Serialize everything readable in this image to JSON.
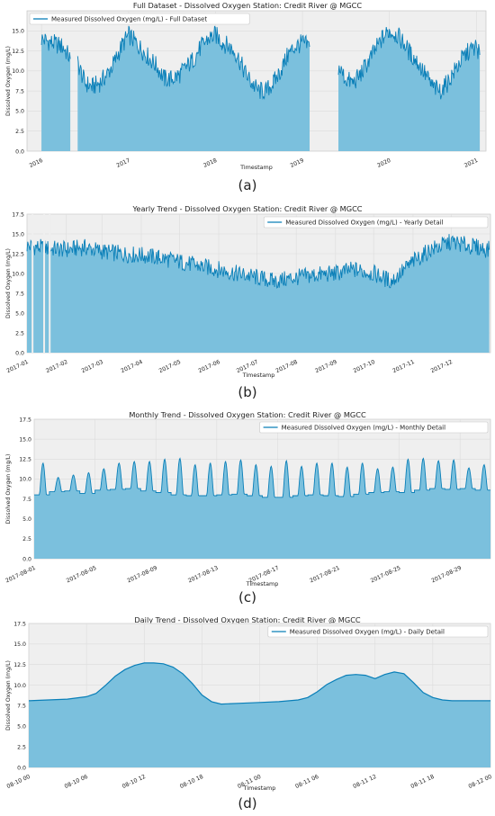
{
  "colors": {
    "line": "#0a7fb8",
    "fill": "#7bc0dd",
    "plot_bg": "#efefef",
    "grid": "#dcdcdc"
  },
  "chart_data": [
    {
      "type": "area",
      "caption": "(a)",
      "title": "Full Dataset - Dissolved Oxygen Station: Credit River @ MGCC",
      "legend": "Measured Dissolved Oxygen (mg/L) - Full Dataset",
      "legend_position": "top-left",
      "xlabel": "Timestamp",
      "ylabel": "Dissolved Oxygen (mg/L)",
      "ylim": [
        0,
        17.5
      ],
      "yticks": [
        "0.0",
        "2.5",
        "5.0",
        "7.5",
        "10.0",
        "12.5",
        "15.0"
      ],
      "xlim": [
        "2015-11-01",
        "2021-02-10"
      ],
      "xticks": [
        "2016",
        "2017",
        "2018",
        "2019",
        "2020",
        "2021"
      ],
      "grid": true,
      "series": [
        {
          "x": [
            "2016-01-01",
            "2016-02-15",
            "2016-04-01",
            "2016-05-01",
            "2016-05-20",
            "2016-06-01",
            "2016-07-01",
            "2016-08-01",
            "2016-09-01",
            "2016-10-01",
            "2016-11-01",
            "2016-12-01",
            "2017-01-01",
            "2017-02-01",
            "2017-03-01",
            "2017-04-01",
            "2017-05-01",
            "2017-06-01",
            "2017-07-01",
            "2017-08-01",
            "2017-09-01",
            "2017-10-01",
            "2017-11-01",
            "2017-12-01",
            "2018-01-01",
            "2018-02-01",
            "2018-03-01",
            "2018-04-01",
            "2018-05-01",
            "2018-06-01",
            "2018-07-01",
            "2018-08-01",
            "2018-09-01",
            "2018-10-01",
            "2018-11-01",
            "2018-12-01",
            "2019-01-01",
            "2019-01-31",
            "2019-05-01",
            "2019-06-01",
            "2019-07-01",
            "2019-08-01",
            "2019-09-01",
            "2019-10-01",
            "2019-11-01",
            "2019-12-01",
            "2020-01-01",
            "2020-02-01",
            "2020-03-01",
            "2020-04-01",
            "2020-05-01",
            "2020-06-01",
            "2020-07-01",
            "2020-08-01",
            "2020-09-01",
            "2020-10-01",
            "2020-11-01",
            "2020-12-01",
            "2021-01-01",
            "2021-01-15"
          ],
          "y": [
            14.0,
            13.5,
            13.0,
            11.5,
            null,
            11.0,
            8.5,
            8.0,
            8.5,
            9.5,
            11.0,
            13.0,
            14.5,
            13.5,
            12.5,
            11.5,
            10.5,
            9.0,
            9.0,
            9.5,
            10.5,
            11.5,
            13.0,
            14.0,
            14.5,
            13.5,
            13.0,
            12.0,
            10.0,
            8.5,
            7.5,
            7.5,
            8.5,
            10.0,
            12.0,
            13.0,
            13.5,
            13.0,
            null,
            10.5,
            9.0,
            8.5,
            9.5,
            11.0,
            12.5,
            14.0,
            15.0,
            14.5,
            13.5,
            12.0,
            11.0,
            9.5,
            8.0,
            7.5,
            8.5,
            10.0,
            11.5,
            12.5,
            13.0,
            12.0
          ]
        }
      ]
    },
    {
      "type": "area",
      "caption": "(b)",
      "title": "Yearly Trend - Dissolved Oxygen Station: Credit River @ MGCC",
      "legend": "Measured Dissolved Oxygen (mg/L) - Yearly Detail",
      "legend_position": "top-right",
      "xlabel": "Timestamp",
      "ylabel": "Dissolved Oxygen (mg/L)",
      "ylim": [
        0,
        17.5
      ],
      "yticks": [
        "0.0",
        "2.5",
        "5.0",
        "7.5",
        "10.0",
        "12.5",
        "15.0",
        "17.5"
      ],
      "xlim": [
        "2017-01-01",
        "2018-01-01"
      ],
      "xticks": [
        "2017-01",
        "2017-02",
        "2017-03",
        "2017-04",
        "2017-05",
        "2017-06",
        "2017-07",
        "2017-08",
        "2017-09",
        "2017-10",
        "2017-11",
        "2017-12"
      ],
      "grid": true,
      "series": [
        {
          "x": [
            "2017-01-01",
            "2017-01-15",
            "2017-02-01",
            "2017-02-15",
            "2017-03-01",
            "2017-03-15",
            "2017-04-01",
            "2017-04-15",
            "2017-05-01",
            "2017-05-15",
            "2017-06-01",
            "2017-06-15",
            "2017-07-01",
            "2017-07-15",
            "2017-08-01",
            "2017-08-15",
            "2017-09-01",
            "2017-09-15",
            "2017-10-01",
            "2017-10-15",
            "2017-11-01",
            "2017-11-15",
            "2017-12-01",
            "2017-12-15",
            "2017-12-31"
          ],
          "y": [
            13.5,
            13.2,
            13.0,
            13.3,
            12.8,
            12.5,
            12.3,
            12.0,
            11.5,
            11.0,
            10.5,
            10.0,
            9.5,
            9.0,
            9.5,
            9.8,
            10.0,
            10.5,
            10.0,
            9.0,
            11.5,
            13.0,
            14.0,
            13.5,
            13.0
          ]
        }
      ]
    },
    {
      "type": "area",
      "caption": "(c)",
      "title": "Monthly Trend - Dissolved Oxygen Station: Credit River @ MGCC",
      "legend": "Measured Dissolved Oxygen (mg/L) - Monthly Detail",
      "legend_position": "top-right",
      "xlabel": "Timestamp",
      "ylabel": "Dissolved Oxygen (mg/L)",
      "ylim": [
        0,
        17.5
      ],
      "yticks": [
        "0.0",
        "2.5",
        "5.0",
        "7.5",
        "10.0",
        "12.5",
        "15.0",
        "17.5"
      ],
      "xlim": [
        "2017-08-01",
        "2017-08-31"
      ],
      "xticks": [
        "2017-08-01",
        "2017-08-05",
        "2017-08-09",
        "2017-08-13",
        "2017-08-17",
        "2017-08-21",
        "2017-08-25",
        "2017-08-29"
      ],
      "grid": true,
      "series": [
        {
          "x": [
            "2017-08-01",
            "2017-08-02",
            "2017-08-03",
            "2017-08-04",
            "2017-08-05",
            "2017-08-06",
            "2017-08-07",
            "2017-08-08",
            "2017-08-09",
            "2017-08-10",
            "2017-08-11",
            "2017-08-12",
            "2017-08-13",
            "2017-08-14",
            "2017-08-15",
            "2017-08-16",
            "2017-08-17",
            "2017-08-18",
            "2017-08-19",
            "2017-08-20",
            "2017-08-21",
            "2017-08-22",
            "2017-08-23",
            "2017-08-24",
            "2017-08-25",
            "2017-08-26",
            "2017-08-27",
            "2017-08-28",
            "2017-08-29",
            "2017-08-30",
            "2017-08-31"
          ],
          "y_min": [
            8.0,
            8.4,
            8.5,
            8.2,
            8.6,
            8.7,
            8.8,
            8.5,
            8.3,
            8.0,
            7.9,
            7.9,
            8.0,
            8.1,
            7.9,
            7.7,
            7.7,
            7.9,
            8.0,
            7.9,
            7.8,
            8.1,
            8.3,
            8.4,
            8.3,
            8.6,
            8.8,
            8.7,
            8.8,
            8.6,
            8.6
          ],
          "y_max": [
            12.0,
            10.2,
            10.5,
            10.8,
            11.3,
            12.0,
            12.2,
            12.2,
            12.5,
            12.6,
            11.8,
            12.0,
            12.2,
            12.4,
            11.8,
            11.6,
            12.3,
            11.6,
            12.0,
            12.0,
            11.5,
            12.0,
            11.3,
            11.5,
            12.5,
            12.6,
            12.3,
            12.4,
            11.4,
            11.8,
            9.8
          ]
        }
      ]
    },
    {
      "type": "area",
      "caption": "(d)",
      "title": "Daily Trend - Dissolved Oxygen Station: Credit River @ MGCC",
      "legend": "Measured Dissolved Oxygen (mg/L) - Daily Detail",
      "legend_position": "top-right",
      "xlabel": "Timestamp",
      "ylabel": "Dissolved Oxygen (mg/L)",
      "ylim": [
        0,
        17.5
      ],
      "yticks": [
        "0.0",
        "2.5",
        "5.0",
        "7.5",
        "10.0",
        "12.5",
        "15.0",
        "17.5"
      ],
      "xlim": [
        0,
        48
      ],
      "xticks": [
        "08-10 00",
        "08-10 06",
        "08-10 12",
        "08-10 18",
        "08-11 00",
        "08-11 06",
        "08-11 12",
        "08-11 18",
        "08-12 00"
      ],
      "grid": true,
      "series": [
        {
          "x": [
            0,
            2,
            4,
            6,
            7,
            8,
            9,
            10,
            11,
            12,
            13,
            14,
            15,
            16,
            17,
            18,
            19,
            20,
            22,
            24,
            26,
            28,
            29,
            30,
            31,
            32,
            33,
            34,
            35,
            36,
            37,
            38,
            39,
            40,
            41,
            42,
            43,
            44,
            46,
            48
          ],
          "y": [
            8.1,
            8.2,
            8.3,
            8.6,
            9.0,
            10.0,
            11.1,
            11.9,
            12.4,
            12.7,
            12.7,
            12.6,
            12.2,
            11.4,
            10.2,
            8.8,
            8.0,
            7.7,
            7.8,
            7.9,
            8.0,
            8.2,
            8.5,
            9.2,
            10.1,
            10.7,
            11.2,
            11.3,
            11.2,
            10.8,
            11.3,
            11.6,
            11.4,
            10.3,
            9.1,
            8.5,
            8.2,
            8.1,
            8.1,
            8.1
          ]
        }
      ]
    }
  ]
}
